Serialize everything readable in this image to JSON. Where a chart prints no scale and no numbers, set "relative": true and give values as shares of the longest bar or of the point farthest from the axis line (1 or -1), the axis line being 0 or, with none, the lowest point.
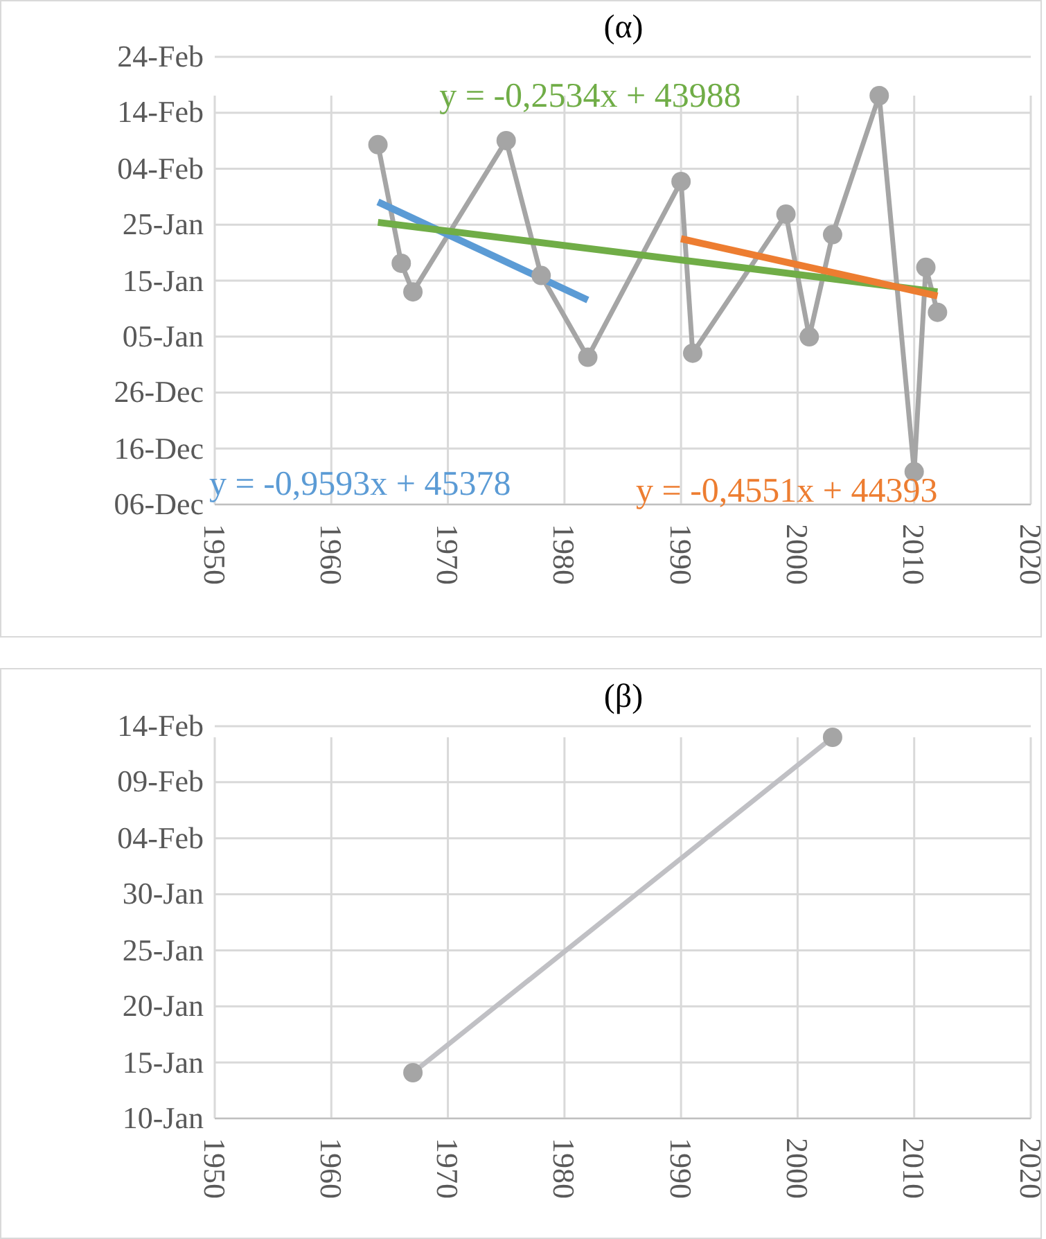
{
  "chart_data": [
    {
      "type": "line",
      "title": "(α)",
      "grid": true,
      "marker": "circle",
      "relative": true,
      "xlim": [
        1950,
        2020
      ],
      "xticks": [
        1950,
        1960,
        1970,
        1980,
        1990,
        2000,
        2010,
        2020
      ],
      "annotations": [
        "24-Feb",
        "14-Feb",
        "04-Feb",
        "25-Jan",
        "15-Jan",
        "05-Jan",
        "26-Dec",
        "16-Dec",
        "06-Dec"
      ],
      "series": [
        {
          "color": "#a5a5a5",
          "x": [
            1964,
            1966,
            1967,
            1975,
            1978,
            1982,
            1990,
            1991,
            1999,
            2001,
            2003,
            2007,
            2010,
            2011,
            2012
          ],
          "values": [
            0.88,
            0.59,
            0.52,
            0.89,
            0.56,
            0.36,
            0.79,
            0.37,
            0.71,
            0.41,
            0.66,
            1,
            0.08,
            0.58,
            0.47
          ]
        },
        {
          "name": "y = -0,9593x + 45378",
          "color": "#5b9bd5",
          "marker": "none",
          "x": [
            1964,
            1982
          ],
          "values": [
            0.74,
            0.5
          ]
        },
        {
          "name": "y = -0,2534x + 43988",
          "color": "#70ad47",
          "marker": "none",
          "x": [
            1964,
            2012
          ],
          "values": [
            0.69,
            0.52
          ]
        },
        {
          "name": "y = -0,4551x + 44393",
          "color": "#ed7d31",
          "marker": "none",
          "x": [
            1990,
            2012
          ],
          "values": [
            0.65,
            0.51
          ]
        }
      ]
    },
    {
      "type": "line",
      "title": "(β)",
      "grid": true,
      "marker": "circle",
      "relative": true,
      "xlim": [
        1950,
        2020
      ],
      "xticks": [
        1950,
        1960,
        1970,
        1980,
        1990,
        2000,
        2010,
        2020
      ],
      "annotations": [
        "14-Feb",
        "09-Feb",
        "04-Feb",
        "30-Jan",
        "25-Jan",
        "20-Jan",
        "15-Jan",
        "10-Jan"
      ],
      "series": [
        {
          "color": "#c0c0c4",
          "x": [
            1967,
            2003
          ],
          "values": [
            0.12,
            1
          ]
        }
      ]
    }
  ]
}
